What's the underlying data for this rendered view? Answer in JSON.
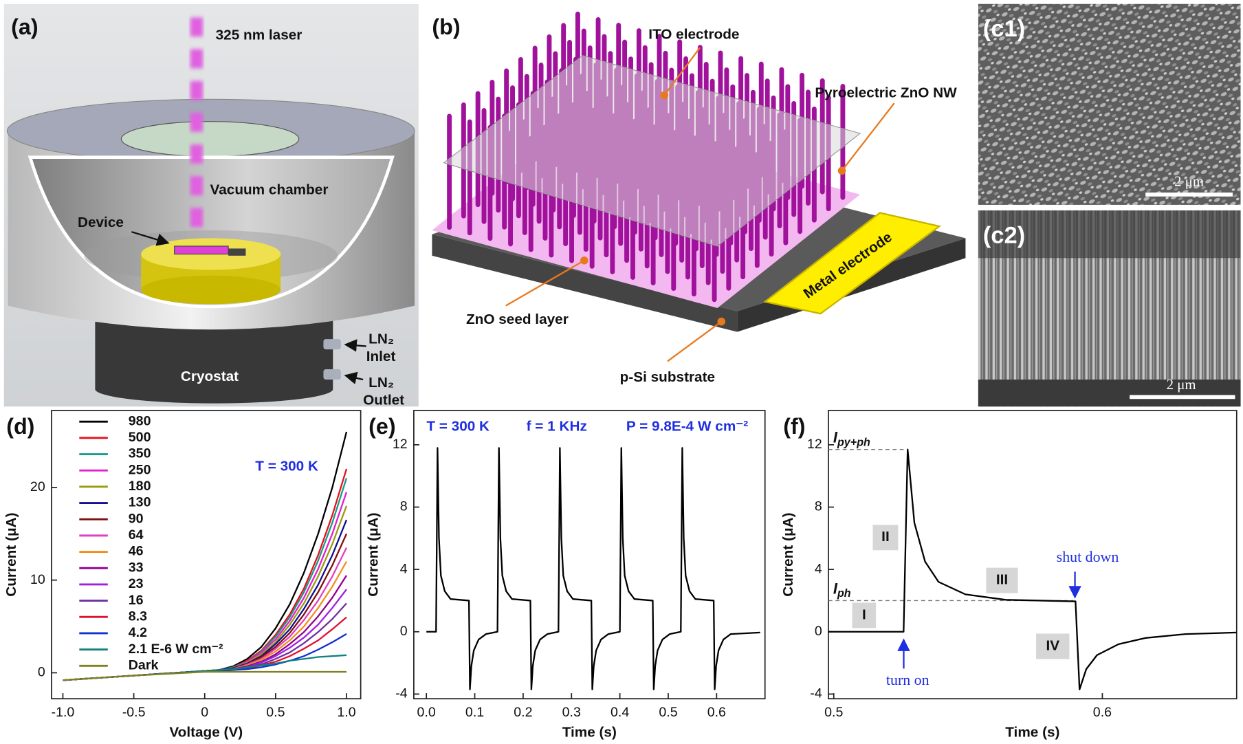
{
  "panels": {
    "a": {
      "label": "(a)",
      "laser": "325 nm laser",
      "chamber": "Vacuum chamber",
      "device": "Device",
      "cryostat": "Cryostat",
      "inlet_gas": "LN₂",
      "inlet": "Inlet",
      "outlet_gas": "LN₂",
      "outlet": "Outlet"
    },
    "b": {
      "label": "(b)",
      "ito": "ITO electrode",
      "nw": "Pyroelectric ZnO NW",
      "seed": "ZnO seed layer",
      "metal": "Metal electrode",
      "substrate": "p-Si substrate"
    },
    "c1": {
      "label": "(c1)",
      "scale": "2 μm"
    },
    "c2": {
      "label": "(c2)",
      "scale": "2 μm"
    }
  },
  "chart_data": [
    {
      "type": "line",
      "panel": "(d)",
      "xlabel": "Voltage (V)",
      "ylabel": "Current (μA)",
      "xlim": [
        -1.08,
        1.1
      ],
      "ylim": [
        -2.8,
        28.3
      ],
      "xticks": [
        {
          "value": -1,
          "label": "-1.0"
        },
        -0.5,
        0,
        0.5,
        {
          "value": 1,
          "label": "1.0"
        }
      ],
      "yticks": [
        0,
        10,
        20
      ],
      "grid": false,
      "legend": "upper left",
      "annotations": [
        "T = 300 K"
      ],
      "annotation_color": "#1f2fe0",
      "x": [
        -1,
        -0.5,
        0,
        0.1,
        0.2,
        0.3,
        0.4,
        0.5,
        0.6,
        0.7,
        0.8,
        0.9,
        1
      ],
      "series": [
        {
          "name": "980",
          "color": "#000000",
          "values": [
            -0.8,
            -0.3,
            0.2,
            0.3,
            0.7,
            1.5,
            2.8,
            4.8,
            7.4,
            10.8,
            15,
            20,
            26
          ]
        },
        {
          "name": "500",
          "color": "#e8101a",
          "values": [
            -0.8,
            -0.3,
            0.2,
            0.3,
            0.6,
            1.3,
            2.4,
            4.1,
            6.3,
            9.1,
            12.7,
            17,
            22
          ]
        },
        {
          "name": "350",
          "color": "#1a9a8a",
          "values": [
            -0.8,
            -0.3,
            0.2,
            0.3,
            0.6,
            1.2,
            2.3,
            3.9,
            6,
            8.7,
            12.1,
            16.2,
            21
          ]
        },
        {
          "name": "250",
          "color": "#e020d0",
          "values": [
            -0.8,
            -0.3,
            0.2,
            0.3,
            0.5,
            1.2,
            2.2,
            3.6,
            5.6,
            8.1,
            11.2,
            15,
            19.5
          ]
        },
        {
          "name": "180",
          "color": "#9a9a10",
          "values": [
            -0.8,
            -0.3,
            0.2,
            0.3,
            0.5,
            1.1,
            2,
            3.3,
            5.2,
            7.5,
            10.4,
            13.9,
            18
          ]
        },
        {
          "name": "130",
          "color": "#101090",
          "values": [
            -0.8,
            -0.3,
            0.2,
            0.3,
            0.5,
            1,
            1.8,
            3.1,
            4.7,
            6.9,
            9.5,
            12.7,
            16.5
          ]
        },
        {
          "name": "90",
          "color": "#801010",
          "values": [
            -0.8,
            -0.3,
            0.2,
            0.2,
            0.5,
            0.9,
            1.7,
            2.8,
            4.3,
            6.3,
            8.7,
            11.6,
            15
          ]
        },
        {
          "name": "64",
          "color": "#e040c0",
          "values": [
            -0.8,
            -0.3,
            0.2,
            0.2,
            0.4,
            0.9,
            1.5,
            2.6,
            3.9,
            5.7,
            7.8,
            10.4,
            13.5
          ]
        },
        {
          "name": "46",
          "color": "#f0901a",
          "values": [
            -0.8,
            -0.3,
            0.2,
            0.2,
            0.4,
            0.8,
            1.4,
            2.3,
            3.5,
            5,
            7,
            9.3,
            12
          ]
        },
        {
          "name": "33",
          "color": "#900090",
          "values": [
            -0.8,
            -0.3,
            0.2,
            0.2,
            0.4,
            0.7,
            1.2,
            2,
            3.1,
            4.4,
            6.1,
            8.1,
            10.5
          ]
        },
        {
          "name": "23",
          "color": "#a020e0",
          "values": [
            -0.8,
            -0.3,
            0.2,
            0.2,
            0.4,
            0.6,
            1.1,
            1.8,
            2.7,
            3.8,
            5.2,
            7,
            9
          ]
        },
        {
          "name": "16",
          "color": "#7030a0",
          "values": [
            -0.8,
            -0.3,
            0.2,
            0.2,
            0.3,
            0.6,
            0.9,
            1.5,
            2.2,
            3.2,
            4.4,
            5.8,
            7.5
          ]
        },
        {
          "name": "8.3",
          "color": "#e01030",
          "values": [
            -0.8,
            -0.3,
            0.2,
            0.2,
            0.3,
            0.5,
            0.8,
            1.2,
            1.8,
            2.6,
            3.5,
            4.7,
            6
          ]
        },
        {
          "name": "4.2",
          "color": "#1030d0",
          "values": [
            -0.8,
            -0.3,
            0.2,
            0.2,
            0.3,
            0.4,
            0.6,
            0.9,
            1.3,
            1.8,
            2.5,
            3.3,
            4.2
          ]
        },
        {
          "name": "2.1 E-6 W cm⁻²",
          "color": "#108080",
          "values": [
            -0.8,
            -0.3,
            0.2,
            0.3,
            0.4,
            0.6,
            0.8,
            1,
            1.3,
            1.5,
            1.7,
            1.8,
            1.9
          ]
        },
        {
          "name": "Dark",
          "color": "#808020",
          "values": [
            -0.8,
            -0.3,
            0.1,
            0.1,
            0.1,
            0.1,
            0.1,
            0.1,
            0.1,
            0.1,
            0.1,
            0.1,
            0.1
          ]
        }
      ]
    },
    {
      "type": "line",
      "panel": "(e)",
      "xlabel": "Time (s)",
      "ylabel": "Current (μA)",
      "xlim": [
        -0.026,
        0.7
      ],
      "ylim": [
        -4.3,
        14.2
      ],
      "xticks": [
        {
          "value": 0,
          "label": "0.0"
        },
        0.1,
        0.2,
        0.3,
        0.4,
        0.5,
        0.6
      ],
      "yticks": [
        -4,
        0,
        4,
        8,
        12
      ],
      "grid": false,
      "annotations": [
        "T = 300 K",
        "f = 1 KHz",
        "P = 9.8E-4 W cm⁻²"
      ],
      "annotation_color": "#1f2fe0",
      "color": "#000000",
      "x": [
        0,
        0.02,
        0.023,
        0.026,
        0.03,
        0.038,
        0.05,
        0.088,
        0.09,
        0.093,
        0.098,
        0.108,
        0.123,
        0.147,
        0.15,
        0.153,
        0.157,
        0.165,
        0.177,
        0.215,
        0.217,
        0.22,
        0.225,
        0.235,
        0.25,
        0.273,
        0.276,
        0.279,
        0.283,
        0.291,
        0.303,
        0.341,
        0.343,
        0.346,
        0.351,
        0.361,
        0.376,
        0.4,
        0.403,
        0.406,
        0.41,
        0.418,
        0.43,
        0.468,
        0.47,
        0.473,
        0.478,
        0.488,
        0.503,
        0.526,
        0.529,
        0.532,
        0.536,
        0.544,
        0.556,
        0.594,
        0.596,
        0.599,
        0.604,
        0.614,
        0.629,
        0.69
      ],
      "values": [
        0,
        0,
        11.8,
        6,
        3.6,
        2.6,
        2.1,
        2,
        -3.7,
        -2.2,
        -1.2,
        -0.5,
        -0.15,
        0,
        11.8,
        6,
        3.6,
        2.6,
        2.1,
        2,
        -3.7,
        -2.2,
        -1.2,
        -0.5,
        -0.15,
        0,
        11.8,
        6,
        3.6,
        2.6,
        2.1,
        2,
        -3.7,
        -2.2,
        -1.2,
        -0.5,
        -0.15,
        0,
        11.8,
        6,
        3.6,
        2.6,
        2.1,
        2,
        -3.7,
        -2.2,
        -1.2,
        -0.5,
        -0.15,
        0,
        11.8,
        6,
        3.6,
        2.6,
        2.1,
        2,
        -3.7,
        -2.2,
        -1.2,
        -0.5,
        -0.15,
        -0.05
      ]
    },
    {
      "type": "line",
      "panel": "(f)",
      "xlabel": "Time (s)",
      "ylabel": "Current (μA)",
      "xlim": [
        0.498,
        0.65
      ],
      "ylim": [
        -4.3,
        14.2
      ],
      "xticks": [
        0.5,
        0.6
      ],
      "yticks": [
        -4,
        0,
        4,
        8,
        12
      ],
      "grid": false,
      "color": "#000000",
      "x": [
        0.498,
        0.526,
        0.5275,
        0.53,
        0.534,
        0.539,
        0.549,
        0.564,
        0.59,
        0.5915,
        0.594,
        0.598,
        0.606,
        0.616,
        0.631,
        0.65
      ],
      "values": [
        0,
        0,
        11.7,
        7,
        4.5,
        3.2,
        2.4,
        2.05,
        1.95,
        -3.7,
        -2.4,
        -1.5,
        -0.8,
        -0.4,
        -0.15,
        -0.05
      ],
      "ref_lines": [
        {
          "value": 11.7,
          "label": "I",
          "sub": "py+ph"
        },
        {
          "value": 2,
          "label": "I",
          "sub": "ph"
        }
      ],
      "regions": [
        "I",
        "II",
        "III",
        "IV"
      ],
      "events": [
        "turn on",
        "shut down"
      ],
      "annotation_color": "#1f2fe0"
    }
  ]
}
